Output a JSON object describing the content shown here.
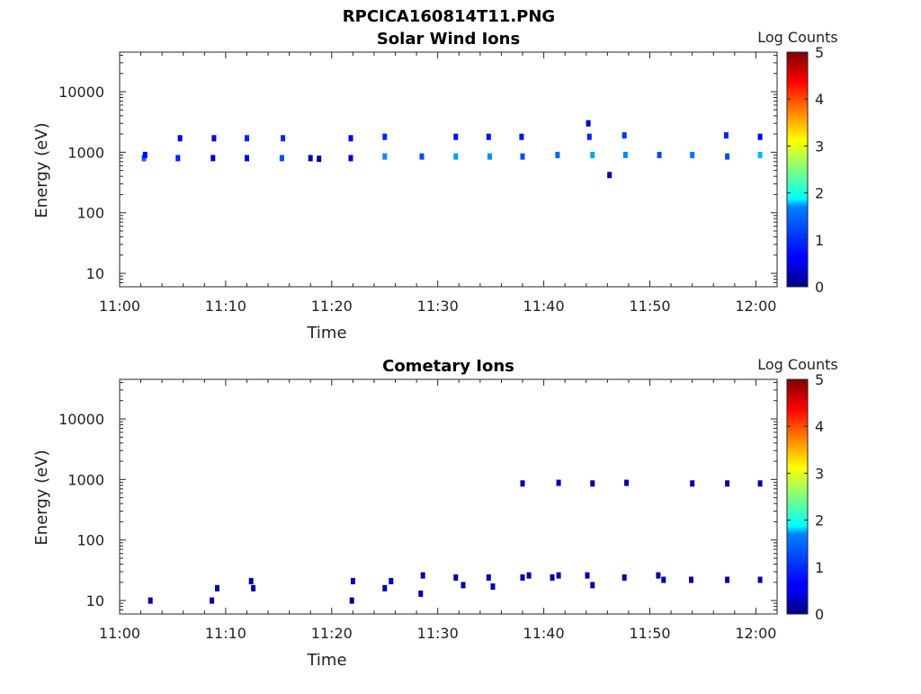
{
  "figure": {
    "title": "RPCICA160814T11.PNG"
  },
  "charts": [
    {
      "type": "heatmap",
      "title": "Solar Wind Ions",
      "xlabel": "Time",
      "ylabel": "Energy (eV)",
      "x_ticks": [
        "11:00",
        "11:10",
        "11:20",
        "11:30",
        "11:40",
        "11:50",
        "12:00"
      ],
      "y_ticks": [
        "10",
        "100",
        "1000",
        "10000"
      ],
      "yscale": "log",
      "xlim_minutes": [
        0,
        62
      ],
      "ylim": [
        6,
        45000
      ],
      "colorbar": {
        "label": "Log Counts",
        "ticks": [
          "0",
          "1",
          "2",
          "3",
          "4",
          "5"
        ],
        "range": [
          0,
          5
        ],
        "colormap": "jet"
      },
      "patches": [
        {
          "t": 2.3,
          "e": 800,
          "c": 1.1
        },
        {
          "t": 2.4,
          "e": 900,
          "c": 0.6
        },
        {
          "t": 5.5,
          "e": 800,
          "c": 0.8
        },
        {
          "t": 5.7,
          "e": 1700,
          "c": 0.6
        },
        {
          "t": 8.8,
          "e": 800,
          "c": 0.3
        },
        {
          "t": 8.9,
          "e": 1700,
          "c": 0.6
        },
        {
          "t": 12.0,
          "e": 800,
          "c": 0.6
        },
        {
          "t": 12.0,
          "e": 1700,
          "c": 0.8
        },
        {
          "t": 15.3,
          "e": 800,
          "c": 1.0
        },
        {
          "t": 15.4,
          "e": 1700,
          "c": 0.8
        },
        {
          "t": 18.0,
          "e": 800,
          "c": 0.2
        },
        {
          "t": 18.8,
          "e": 780,
          "c": 0.1
        },
        {
          "t": 21.8,
          "e": 800,
          "c": 0.4
        },
        {
          "t": 21.8,
          "e": 1700,
          "c": 0.5
        },
        {
          "t": 25.0,
          "e": 850,
          "c": 1.3
        },
        {
          "t": 25.0,
          "e": 1800,
          "c": 0.8
        },
        {
          "t": 28.5,
          "e": 850,
          "c": 1.0
        },
        {
          "t": 31.7,
          "e": 850,
          "c": 1.4
        },
        {
          "t": 31.7,
          "e": 1800,
          "c": 0.7
        },
        {
          "t": 34.9,
          "e": 850,
          "c": 1.3
        },
        {
          "t": 34.8,
          "e": 1800,
          "c": 0.7
        },
        {
          "t": 38.0,
          "e": 850,
          "c": 1.0
        },
        {
          "t": 37.9,
          "e": 1800,
          "c": 0.7
        },
        {
          "t": 41.3,
          "e": 900,
          "c": 1.1
        },
        {
          "t": 44.2,
          "e": 3000,
          "c": 0.3
        },
        {
          "t": 44.3,
          "e": 1800,
          "c": 0.8
        },
        {
          "t": 44.6,
          "e": 900,
          "c": 1.4
        },
        {
          "t": 46.2,
          "e": 420,
          "c": 0.3
        },
        {
          "t": 47.6,
          "e": 1900,
          "c": 0.9
        },
        {
          "t": 47.7,
          "e": 900,
          "c": 1.3
        },
        {
          "t": 50.9,
          "e": 900,
          "c": 1.0
        },
        {
          "t": 54.0,
          "e": 900,
          "c": 1.2
        },
        {
          "t": 57.3,
          "e": 850,
          "c": 1.0
        },
        {
          "t": 57.2,
          "e": 1900,
          "c": 0.8
        },
        {
          "t": 60.4,
          "e": 900,
          "c": 1.5
        },
        {
          "t": 60.4,
          "e": 1800,
          "c": 0.6
        }
      ]
    },
    {
      "type": "heatmap",
      "title": "Cometary Ions",
      "xlabel": "Time",
      "ylabel": "Energy (eV)",
      "x_ticks": [
        "11:00",
        "11:10",
        "11:20",
        "11:30",
        "11:40",
        "11:50",
        "12:00"
      ],
      "y_ticks": [
        "10",
        "100",
        "1000",
        "10000"
      ],
      "yscale": "log",
      "xlim_minutes": [
        0,
        62
      ],
      "ylim": [
        6,
        45000
      ],
      "colorbar": {
        "label": "Log Counts",
        "ticks": [
          "0",
          "1",
          "2",
          "3",
          "4",
          "5"
        ],
        "range": [
          0,
          5
        ],
        "colormap": "jet"
      },
      "patches": [
        {
          "t": 2.9,
          "e": 10,
          "c": 0.2
        },
        {
          "t": 8.7,
          "e": 10,
          "c": 0.2
        },
        {
          "t": 9.2,
          "e": 16,
          "c": 0.2
        },
        {
          "t": 12.4,
          "e": 21,
          "c": 0.2
        },
        {
          "t": 12.6,
          "e": 16,
          "c": 0.2
        },
        {
          "t": 22.0,
          "e": 21,
          "c": 0.2
        },
        {
          "t": 21.9,
          "e": 10,
          "c": 0.1
        },
        {
          "t": 25.0,
          "e": 16,
          "c": 0.2
        },
        {
          "t": 25.6,
          "e": 21,
          "c": 0.2
        },
        {
          "t": 28.6,
          "e": 26,
          "c": 0.2
        },
        {
          "t": 28.4,
          "e": 13,
          "c": 0.1
        },
        {
          "t": 31.7,
          "e": 24,
          "c": 0.2
        },
        {
          "t": 32.4,
          "e": 18,
          "c": 0.2
        },
        {
          "t": 34.8,
          "e": 24,
          "c": 0.2
        },
        {
          "t": 35.2,
          "e": 17,
          "c": 0.2
        },
        {
          "t": 38.0,
          "e": 24,
          "c": 0.2
        },
        {
          "t": 38.6,
          "e": 26,
          "c": 0.2
        },
        {
          "t": 38.0,
          "e": 860,
          "c": 0.2
        },
        {
          "t": 40.8,
          "e": 24,
          "c": 0.2
        },
        {
          "t": 41.4,
          "e": 26,
          "c": 0.2
        },
        {
          "t": 41.4,
          "e": 880,
          "c": 0.2
        },
        {
          "t": 44.1,
          "e": 26,
          "c": 0.2
        },
        {
          "t": 44.6,
          "e": 18,
          "c": 0.2
        },
        {
          "t": 44.6,
          "e": 860,
          "c": 0.2
        },
        {
          "t": 47.6,
          "e": 24,
          "c": 0.2
        },
        {
          "t": 47.8,
          "e": 880,
          "c": 0.2
        },
        {
          "t": 50.8,
          "e": 26,
          "c": 0.2
        },
        {
          "t": 51.3,
          "e": 22,
          "c": 0.2
        },
        {
          "t": 53.9,
          "e": 22,
          "c": 0.2
        },
        {
          "t": 54.0,
          "e": 860,
          "c": 0.2
        },
        {
          "t": 57.3,
          "e": 22,
          "c": 0.2
        },
        {
          "t": 57.3,
          "e": 860,
          "c": 0.2
        },
        {
          "t": 60.4,
          "e": 22,
          "c": 0.2
        },
        {
          "t": 60.4,
          "e": 860,
          "c": 0.2
        }
      ]
    }
  ]
}
